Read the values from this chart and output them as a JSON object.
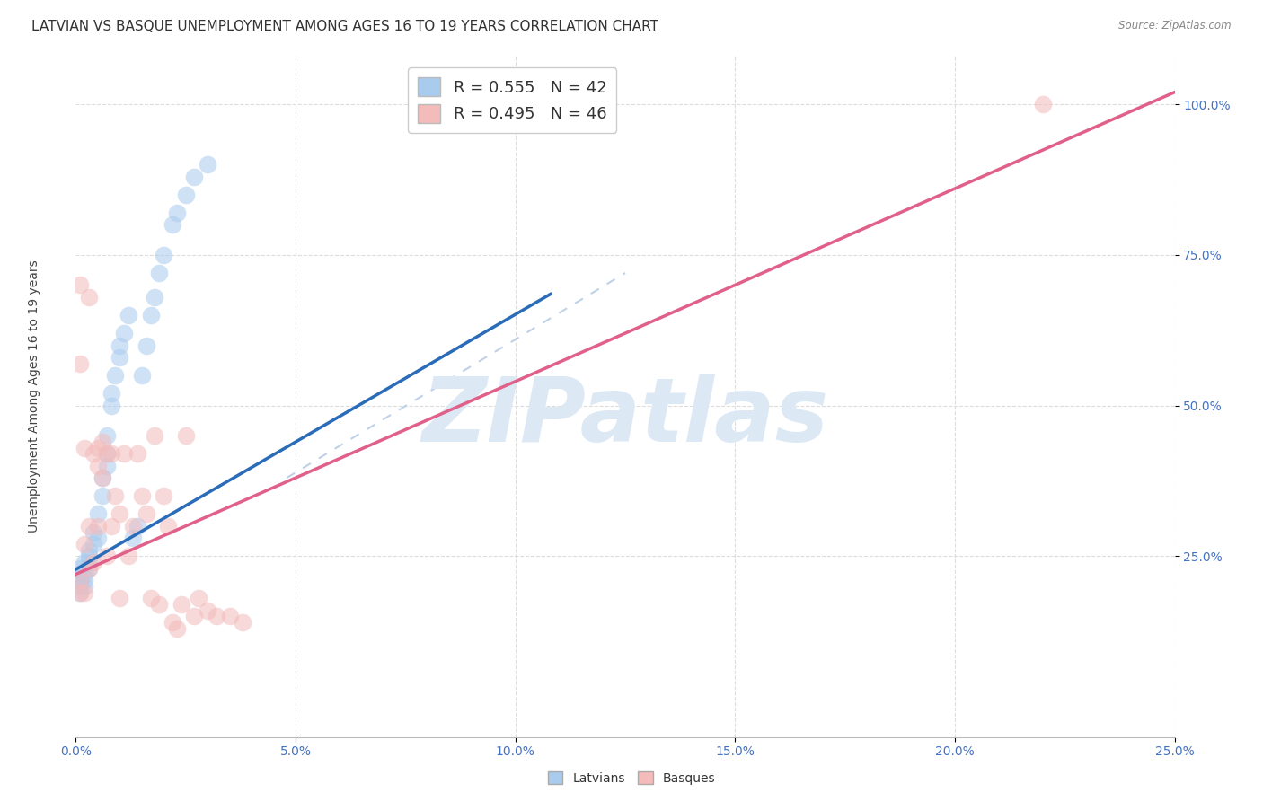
{
  "title": "LATVIAN VS BASQUE UNEMPLOYMENT AMONG AGES 16 TO 19 YEARS CORRELATION CHART",
  "source": "Source: ZipAtlas.com",
  "ylabel": "Unemployment Among Ages 16 to 19 years",
  "xlim": [
    0.0,
    0.25
  ],
  "ylim": [
    -0.05,
    1.08
  ],
  "xticks": [
    0.0,
    0.05,
    0.1,
    0.15,
    0.2,
    0.25
  ],
  "yticks": [
    0.25,
    0.5,
    0.75,
    1.0
  ],
  "latvian_R": 0.555,
  "latvian_N": 42,
  "basque_R": 0.495,
  "basque_N": 46,
  "latvian_dot_color": "#A8CBEE",
  "basque_dot_color": "#F4BBBB",
  "latvian_line_color": "#2B6CB8",
  "basque_line_color": "#E0608A",
  "ref_line_color": "#B8CCE4",
  "watermark_color": "#DCE9F5",
  "background_color": "#FFFFFF",
  "grid_color": "#DDDDDD",
  "tick_color": "#4472C4",
  "title_color": "#333333",
  "latvian_x": [
    0.001,
    0.001,
    0.001,
    0.001,
    0.001,
    0.002,
    0.002,
    0.002,
    0.002,
    0.003,
    0.003,
    0.003,
    0.003,
    0.004,
    0.004,
    0.005,
    0.005,
    0.006,
    0.006,
    0.007,
    0.007,
    0.007,
    0.008,
    0.008,
    0.009,
    0.01,
    0.01,
    0.011,
    0.012,
    0.013,
    0.014,
    0.015,
    0.016,
    0.017,
    0.018,
    0.019,
    0.02,
    0.022,
    0.023,
    0.025,
    0.027,
    0.03
  ],
  "latvian_y": [
    0.2,
    0.22,
    0.21,
    0.19,
    0.23,
    0.24,
    0.22,
    0.2,
    0.21,
    0.26,
    0.25,
    0.24,
    0.23,
    0.27,
    0.29,
    0.32,
    0.28,
    0.38,
    0.35,
    0.4,
    0.42,
    0.45,
    0.5,
    0.52,
    0.55,
    0.58,
    0.6,
    0.62,
    0.65,
    0.28,
    0.3,
    0.55,
    0.6,
    0.65,
    0.68,
    0.72,
    0.75,
    0.8,
    0.82,
    0.85,
    0.88,
    0.9
  ],
  "basque_x": [
    0.001,
    0.001,
    0.001,
    0.001,
    0.002,
    0.002,
    0.002,
    0.003,
    0.003,
    0.003,
    0.004,
    0.004,
    0.005,
    0.005,
    0.005,
    0.006,
    0.006,
    0.007,
    0.007,
    0.008,
    0.008,
    0.009,
    0.01,
    0.01,
    0.011,
    0.012,
    0.013,
    0.014,
    0.015,
    0.016,
    0.017,
    0.018,
    0.019,
    0.02,
    0.021,
    0.022,
    0.023,
    0.024,
    0.025,
    0.027,
    0.028,
    0.03,
    0.032,
    0.035,
    0.038,
    0.22
  ],
  "basque_y": [
    0.19,
    0.57,
    0.21,
    0.7,
    0.19,
    0.27,
    0.43,
    0.23,
    0.3,
    0.68,
    0.42,
    0.24,
    0.4,
    0.3,
    0.43,
    0.38,
    0.44,
    0.42,
    0.25,
    0.3,
    0.42,
    0.35,
    0.32,
    0.18,
    0.42,
    0.25,
    0.3,
    0.42,
    0.35,
    0.32,
    0.18,
    0.45,
    0.17,
    0.35,
    0.3,
    0.14,
    0.13,
    0.17,
    0.45,
    0.15,
    0.18,
    0.16,
    0.15,
    0.15,
    0.14,
    1.0
  ],
  "latvian_line_x0": 0.0,
  "latvian_line_x1": 0.108,
  "latvian_line_y0": 0.228,
  "latvian_line_y1": 0.685,
  "basque_line_x0": 0.0,
  "basque_line_x1": 0.25,
  "basque_line_y0": 0.22,
  "basque_line_y1": 1.02,
  "ref_line_x0": 0.048,
  "ref_line_x1": 0.125,
  "ref_line_y0": 0.38,
  "ref_line_y1": 0.72
}
